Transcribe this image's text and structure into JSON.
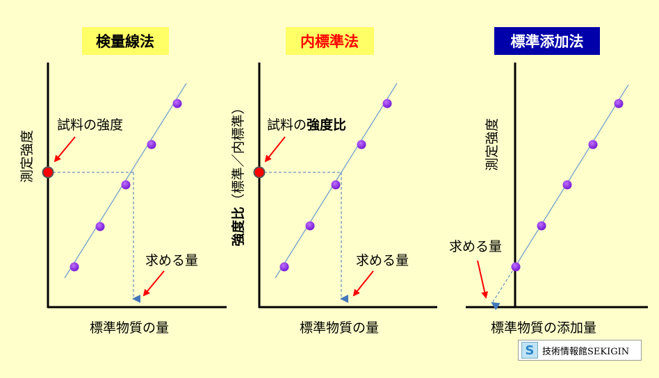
{
  "panels": [
    {
      "title": "検量線法",
      "title_bg": "#ffff66",
      "title_color": "#000000",
      "ylabel": "測定強度",
      "xlabel": "標準物質の量",
      "sample_label": "試料の強度",
      "answer_label": "求める量"
    },
    {
      "title": "内標準法",
      "title_bg": "#ffff66",
      "title_color": "#ff0000",
      "ylabel_bold": "強度比",
      "ylabel_rest": "（標準／内標準）",
      "xlabel": "標準物質の量",
      "sample_label_plain": "試料の",
      "sample_label_bold": "強度比",
      "answer_label": "求める量"
    },
    {
      "title": "標準添加法",
      "title_bg": "#0000aa",
      "title_color": "#ffffff",
      "ylabel": "測定強度",
      "xlabel": "標準物質の添加量",
      "answer_label": "求める量"
    }
  ],
  "colors": {
    "point": "#8a2be2",
    "sample_point": "#ff0000",
    "line": "#6699cc",
    "arrow": "#ff0000",
    "axis": "#000000"
  },
  "watermark": {
    "logo_letter": "S",
    "text": "技術情報館SEKIGIN"
  }
}
